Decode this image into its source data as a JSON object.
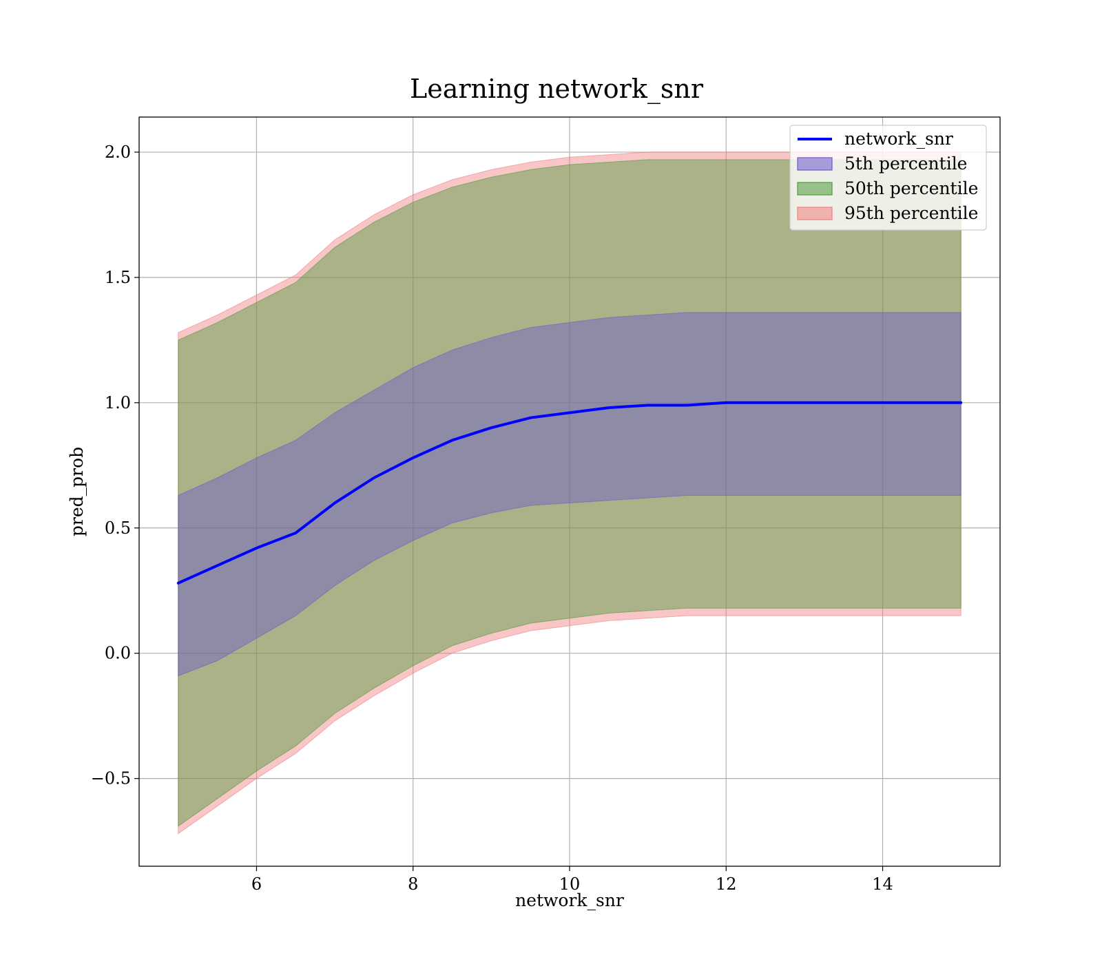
{
  "chart_data": {
    "type": "area",
    "title": "Learning network_snr",
    "xlabel": "network_snr",
    "ylabel": "pred_prob",
    "xlim": [
      4.5,
      15.5
    ],
    "ylim": [
      -0.85,
      2.14
    ],
    "xticks": [
      6,
      8,
      10,
      12,
      14
    ],
    "xtick_labels": [
      "6",
      "8",
      "10",
      "12",
      "14"
    ],
    "yticks": [
      -0.5,
      0.0,
      0.5,
      1.0,
      1.5,
      2.0
    ],
    "ytick_labels": [
      "−0.5",
      "0.0",
      "0.5",
      "1.0",
      "1.5",
      "2.0"
    ],
    "grid": true,
    "legend_position": "top-right",
    "x": [
      5,
      5.5,
      6,
      6.5,
      7,
      7.5,
      8,
      8.5,
      9,
      9.5,
      10,
      10.5,
      11,
      11.5,
      12,
      13,
      14,
      15
    ],
    "series": [
      {
        "name": "network_snr",
        "kind": "line",
        "color": "#0000ff",
        "values": [
          0.28,
          0.35,
          0.42,
          0.48,
          0.6,
          0.7,
          0.78,
          0.85,
          0.9,
          0.94,
          0.96,
          0.98,
          0.99,
          0.99,
          1.0,
          1.0,
          1.0,
          1.0
        ]
      },
      {
        "name": "5th percentile",
        "kind": "band",
        "color": "#6a5acd",
        "lower": [
          -0.09,
          -0.03,
          0.06,
          0.15,
          0.27,
          0.37,
          0.45,
          0.52,
          0.56,
          0.59,
          0.6,
          0.61,
          0.62,
          0.63,
          0.63,
          0.63,
          0.63,
          0.63
        ],
        "upper": [
          0.63,
          0.7,
          0.78,
          0.85,
          0.96,
          1.05,
          1.14,
          1.21,
          1.26,
          1.3,
          1.32,
          1.34,
          1.35,
          1.36,
          1.36,
          1.36,
          1.36,
          1.36
        ]
      },
      {
        "name": "50th percentile",
        "kind": "band",
        "color": "#4f9a3c",
        "lower": [
          -0.69,
          -0.58,
          -0.47,
          -0.37,
          -0.24,
          -0.14,
          -0.05,
          0.03,
          0.08,
          0.12,
          0.14,
          0.16,
          0.17,
          0.18,
          0.18,
          0.18,
          0.18,
          0.18
        ],
        "upper": [
          1.25,
          1.32,
          1.4,
          1.48,
          1.62,
          1.72,
          1.8,
          1.86,
          1.9,
          1.93,
          1.95,
          1.96,
          1.97,
          1.97,
          1.97,
          1.97,
          1.97,
          1.97
        ]
      },
      {
        "name": "95th percentile",
        "kind": "band",
        "color": "#f08080",
        "lower": [
          -0.72,
          -0.61,
          -0.5,
          -0.4,
          -0.27,
          -0.17,
          -0.08,
          0.0,
          0.05,
          0.09,
          0.11,
          0.13,
          0.14,
          0.15,
          0.15,
          0.15,
          0.15,
          0.15
        ],
        "upper": [
          1.28,
          1.35,
          1.43,
          1.51,
          1.65,
          1.75,
          1.83,
          1.89,
          1.93,
          1.96,
          1.98,
          1.99,
          2.0,
          2.0,
          2.0,
          2.0,
          2.0,
          2.0
        ]
      }
    ]
  }
}
